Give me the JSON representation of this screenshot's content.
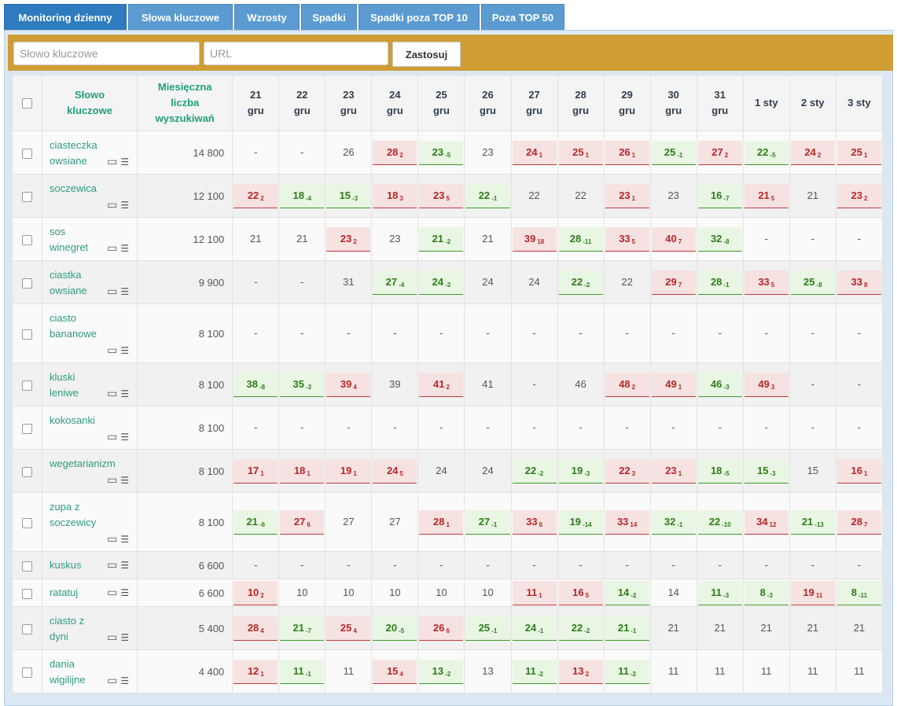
{
  "tabs": [
    {
      "label": "Monitoring dzienny",
      "active": true
    },
    {
      "label": "Słowa kluczowe",
      "active": false
    },
    {
      "label": "Wzrosty",
      "active": false
    },
    {
      "label": "Spadki",
      "active": false
    },
    {
      "label": "Spadki poza TOP 10",
      "active": false
    },
    {
      "label": "Poza TOP 50",
      "active": false
    }
  ],
  "filter": {
    "keyword_placeholder": "Słowo kluczowe",
    "url_placeholder": "URL",
    "apply_label": "Zastosuj"
  },
  "table": {
    "header_keyword": "Słowo kluczowe",
    "header_volume": "Miesięczna liczba wyszukiwań",
    "dates": [
      "21 gru",
      "22 gru",
      "23 gru",
      "24 gru",
      "25 gru",
      "26 gru",
      "27 gru",
      "28 gru",
      "29 gru",
      "30 gru",
      "31 gru",
      "1 sty",
      "2 sty",
      "3 sty"
    ],
    "rows": [
      {
        "keyword": "ciasteczka owsiane",
        "volume": "14 800",
        "positions": [
          [
            "-",
            "",
            ""
          ],
          [
            "-",
            "",
            ""
          ],
          [
            "26",
            "",
            ""
          ],
          [
            "28",
            "2",
            "dn"
          ],
          [
            "23",
            "-5",
            "up"
          ],
          [
            "23",
            "",
            ""
          ],
          [
            "24",
            "1",
            "dn"
          ],
          [
            "25",
            "1",
            "dn"
          ],
          [
            "26",
            "1",
            "dn"
          ],
          [
            "25",
            "-1",
            "up"
          ],
          [
            "27",
            "2",
            "dn"
          ],
          [
            "22",
            "-5",
            "up"
          ],
          [
            "24",
            "2",
            "dn"
          ],
          [
            "25",
            "1",
            "dn"
          ]
        ]
      },
      {
        "keyword": "soczewica",
        "volume": "12 100",
        "positions": [
          [
            "22",
            "2",
            "dn"
          ],
          [
            "18",
            "-4",
            "up"
          ],
          [
            "15",
            "-3",
            "up"
          ],
          [
            "18",
            "3",
            "dn"
          ],
          [
            "23",
            "5",
            "dn"
          ],
          [
            "22",
            "-1",
            "up"
          ],
          [
            "22",
            "",
            ""
          ],
          [
            "22",
            "",
            ""
          ],
          [
            "23",
            "1",
            "dn"
          ],
          [
            "23",
            "",
            ""
          ],
          [
            "16",
            "-7",
            "up"
          ],
          [
            "21",
            "5",
            "dn"
          ],
          [
            "21",
            "",
            ""
          ],
          [
            "23",
            "2",
            "dn"
          ]
        ]
      },
      {
        "keyword": "sos winegret",
        "volume": "12 100",
        "positions": [
          [
            "21",
            "",
            ""
          ],
          [
            "21",
            "",
            ""
          ],
          [
            "23",
            "2",
            "dn"
          ],
          [
            "23",
            "",
            ""
          ],
          [
            "21",
            "-2",
            "up"
          ],
          [
            "21",
            "",
            ""
          ],
          [
            "39",
            "18",
            "dn"
          ],
          [
            "28",
            "-11",
            "up"
          ],
          [
            "33",
            "5",
            "dn"
          ],
          [
            "40",
            "7",
            "dn"
          ],
          [
            "32",
            "-8",
            "up"
          ],
          [
            "-",
            "",
            ""
          ],
          [
            "-",
            "",
            ""
          ],
          [
            "-",
            "",
            ""
          ]
        ]
      },
      {
        "keyword": "ciastka owsiane",
        "volume": "9 900",
        "positions": [
          [
            "-",
            "",
            ""
          ],
          [
            "-",
            "",
            ""
          ],
          [
            "31",
            "",
            ""
          ],
          [
            "27",
            "-4",
            "up"
          ],
          [
            "24",
            "-3",
            "up"
          ],
          [
            "24",
            "",
            ""
          ],
          [
            "24",
            "",
            ""
          ],
          [
            "22",
            "-2",
            "up"
          ],
          [
            "22",
            "",
            ""
          ],
          [
            "29",
            "7",
            "dn"
          ],
          [
            "28",
            "-1",
            "up"
          ],
          [
            "33",
            "5",
            "dn"
          ],
          [
            "25",
            "-8",
            "up"
          ],
          [
            "33",
            "8",
            "dn"
          ]
        ]
      },
      {
        "keyword": "ciasto bananowe",
        "volume": "8 100",
        "positions": [
          [
            "-",
            "",
            ""
          ],
          [
            "-",
            "",
            ""
          ],
          [
            "-",
            "",
            ""
          ],
          [
            "-",
            "",
            ""
          ],
          [
            "-",
            "",
            ""
          ],
          [
            "-",
            "",
            ""
          ],
          [
            "-",
            "",
            ""
          ],
          [
            "-",
            "",
            ""
          ],
          [
            "-",
            "",
            ""
          ],
          [
            "-",
            "",
            ""
          ],
          [
            "-",
            "",
            ""
          ],
          [
            "-",
            "",
            ""
          ],
          [
            "-",
            "",
            ""
          ],
          [
            "-",
            "",
            ""
          ]
        ]
      },
      {
        "keyword": "kluski leniwe",
        "volume": "8 100",
        "positions": [
          [
            "38",
            "-8",
            "up"
          ],
          [
            "35",
            "-3",
            "up"
          ],
          [
            "39",
            "4",
            "dn"
          ],
          [
            "39",
            "",
            ""
          ],
          [
            "41",
            "2",
            "dn"
          ],
          [
            "41",
            "",
            ""
          ],
          [
            "-",
            "",
            ""
          ],
          [
            "46",
            "",
            ""
          ],
          [
            "48",
            "2",
            "dn"
          ],
          [
            "49",
            "1",
            "dn"
          ],
          [
            "46",
            "-3",
            "up"
          ],
          [
            "49",
            "3",
            "dn"
          ],
          [
            "-",
            "",
            ""
          ],
          [
            "-",
            "",
            ""
          ]
        ]
      },
      {
        "keyword": "kokosanki",
        "volume": "8 100",
        "positions": [
          [
            "-",
            "",
            ""
          ],
          [
            "-",
            "",
            ""
          ],
          [
            "-",
            "",
            ""
          ],
          [
            "-",
            "",
            ""
          ],
          [
            "-",
            "",
            ""
          ],
          [
            "-",
            "",
            ""
          ],
          [
            "-",
            "",
            ""
          ],
          [
            "-",
            "",
            ""
          ],
          [
            "-",
            "",
            ""
          ],
          [
            "-",
            "",
            ""
          ],
          [
            "-",
            "",
            ""
          ],
          [
            "-",
            "",
            ""
          ],
          [
            "-",
            "",
            ""
          ],
          [
            "-",
            "",
            ""
          ]
        ]
      },
      {
        "keyword": "wegetarianizm",
        "volume": "8 100",
        "positions": [
          [
            "17",
            "1",
            "dn"
          ],
          [
            "18",
            "1",
            "dn"
          ],
          [
            "19",
            "1",
            "dn"
          ],
          [
            "24",
            "5",
            "dn"
          ],
          [
            "24",
            "",
            ""
          ],
          [
            "24",
            "",
            ""
          ],
          [
            "22",
            "-2",
            "up"
          ],
          [
            "19",
            "-3",
            "up"
          ],
          [
            "22",
            "3",
            "dn"
          ],
          [
            "23",
            "1",
            "dn"
          ],
          [
            "18",
            "-5",
            "up"
          ],
          [
            "15",
            "-3",
            "up"
          ],
          [
            "15",
            "",
            ""
          ],
          [
            "16",
            "1",
            "dn"
          ]
        ]
      },
      {
        "keyword": "zupa z soczewicy",
        "volume": "8 100",
        "positions": [
          [
            "21",
            "-6",
            "up"
          ],
          [
            "27",
            "6",
            "dn"
          ],
          [
            "27",
            "",
            ""
          ],
          [
            "27",
            "",
            ""
          ],
          [
            "28",
            "1",
            "dn"
          ],
          [
            "27",
            "-1",
            "up"
          ],
          [
            "33",
            "6",
            "dn"
          ],
          [
            "19",
            "-14",
            "up"
          ],
          [
            "33",
            "14",
            "dn"
          ],
          [
            "32",
            "-1",
            "up"
          ],
          [
            "22",
            "-10",
            "up"
          ],
          [
            "34",
            "12",
            "dn"
          ],
          [
            "21",
            "-13",
            "up"
          ],
          [
            "28",
            "7",
            "dn"
          ]
        ]
      },
      {
        "keyword": "kuskus",
        "volume": "6 600",
        "positions": [
          [
            "-",
            "",
            ""
          ],
          [
            "-",
            "",
            ""
          ],
          [
            "-",
            "",
            ""
          ],
          [
            "-",
            "",
            ""
          ],
          [
            "-",
            "",
            ""
          ],
          [
            "-",
            "",
            ""
          ],
          [
            "-",
            "",
            ""
          ],
          [
            "-",
            "",
            ""
          ],
          [
            "-",
            "",
            ""
          ],
          [
            "-",
            "",
            ""
          ],
          [
            "-",
            "",
            ""
          ],
          [
            "-",
            "",
            ""
          ],
          [
            "-",
            "",
            ""
          ],
          [
            "-",
            "",
            ""
          ]
        ]
      },
      {
        "keyword": "ratatuj",
        "volume": "6 600",
        "positions": [
          [
            "10",
            "2",
            "dn"
          ],
          [
            "10",
            "",
            ""
          ],
          [
            "10",
            "",
            ""
          ],
          [
            "10",
            "",
            ""
          ],
          [
            "10",
            "",
            ""
          ],
          [
            "10",
            "",
            ""
          ],
          [
            "11",
            "1",
            "dn"
          ],
          [
            "16",
            "5",
            "dn"
          ],
          [
            "14",
            "-2",
            "up"
          ],
          [
            "14",
            "",
            ""
          ],
          [
            "11",
            "-3",
            "up"
          ],
          [
            "8",
            "-3",
            "up"
          ],
          [
            "19",
            "11",
            "dn"
          ],
          [
            "8",
            "-11",
            "up"
          ]
        ]
      },
      {
        "keyword": "ciasto z dyni",
        "volume": "5 400",
        "positions": [
          [
            "28",
            "4",
            "dn"
          ],
          [
            "21",
            "-7",
            "up"
          ],
          [
            "25",
            "4",
            "dn"
          ],
          [
            "20",
            "-5",
            "up"
          ],
          [
            "26",
            "6",
            "dn"
          ],
          [
            "25",
            "-1",
            "up"
          ],
          [
            "24",
            "-1",
            "up"
          ],
          [
            "22",
            "-2",
            "up"
          ],
          [
            "21",
            "-1",
            "up"
          ],
          [
            "21",
            "",
            ""
          ],
          [
            "21",
            "",
            ""
          ],
          [
            "21",
            "",
            ""
          ],
          [
            "21",
            "",
            ""
          ],
          [
            "21",
            "",
            ""
          ]
        ]
      },
      {
        "keyword": "dania wigilijne",
        "volume": "4 400",
        "positions": [
          [
            "12",
            "1",
            "dn"
          ],
          [
            "11",
            "-1",
            "up"
          ],
          [
            "11",
            "",
            ""
          ],
          [
            "15",
            "4",
            "dn"
          ],
          [
            "13",
            "-2",
            "up"
          ],
          [
            "13",
            "",
            ""
          ],
          [
            "11",
            "-2",
            "up"
          ],
          [
            "13",
            "2",
            "dn"
          ],
          [
            "11",
            "-2",
            "up"
          ],
          [
            "11",
            "",
            ""
          ],
          [
            "11",
            "",
            ""
          ],
          [
            "11",
            "",
            ""
          ],
          [
            "11",
            "",
            ""
          ],
          [
            "11",
            "",
            ""
          ]
        ]
      }
    ]
  }
}
